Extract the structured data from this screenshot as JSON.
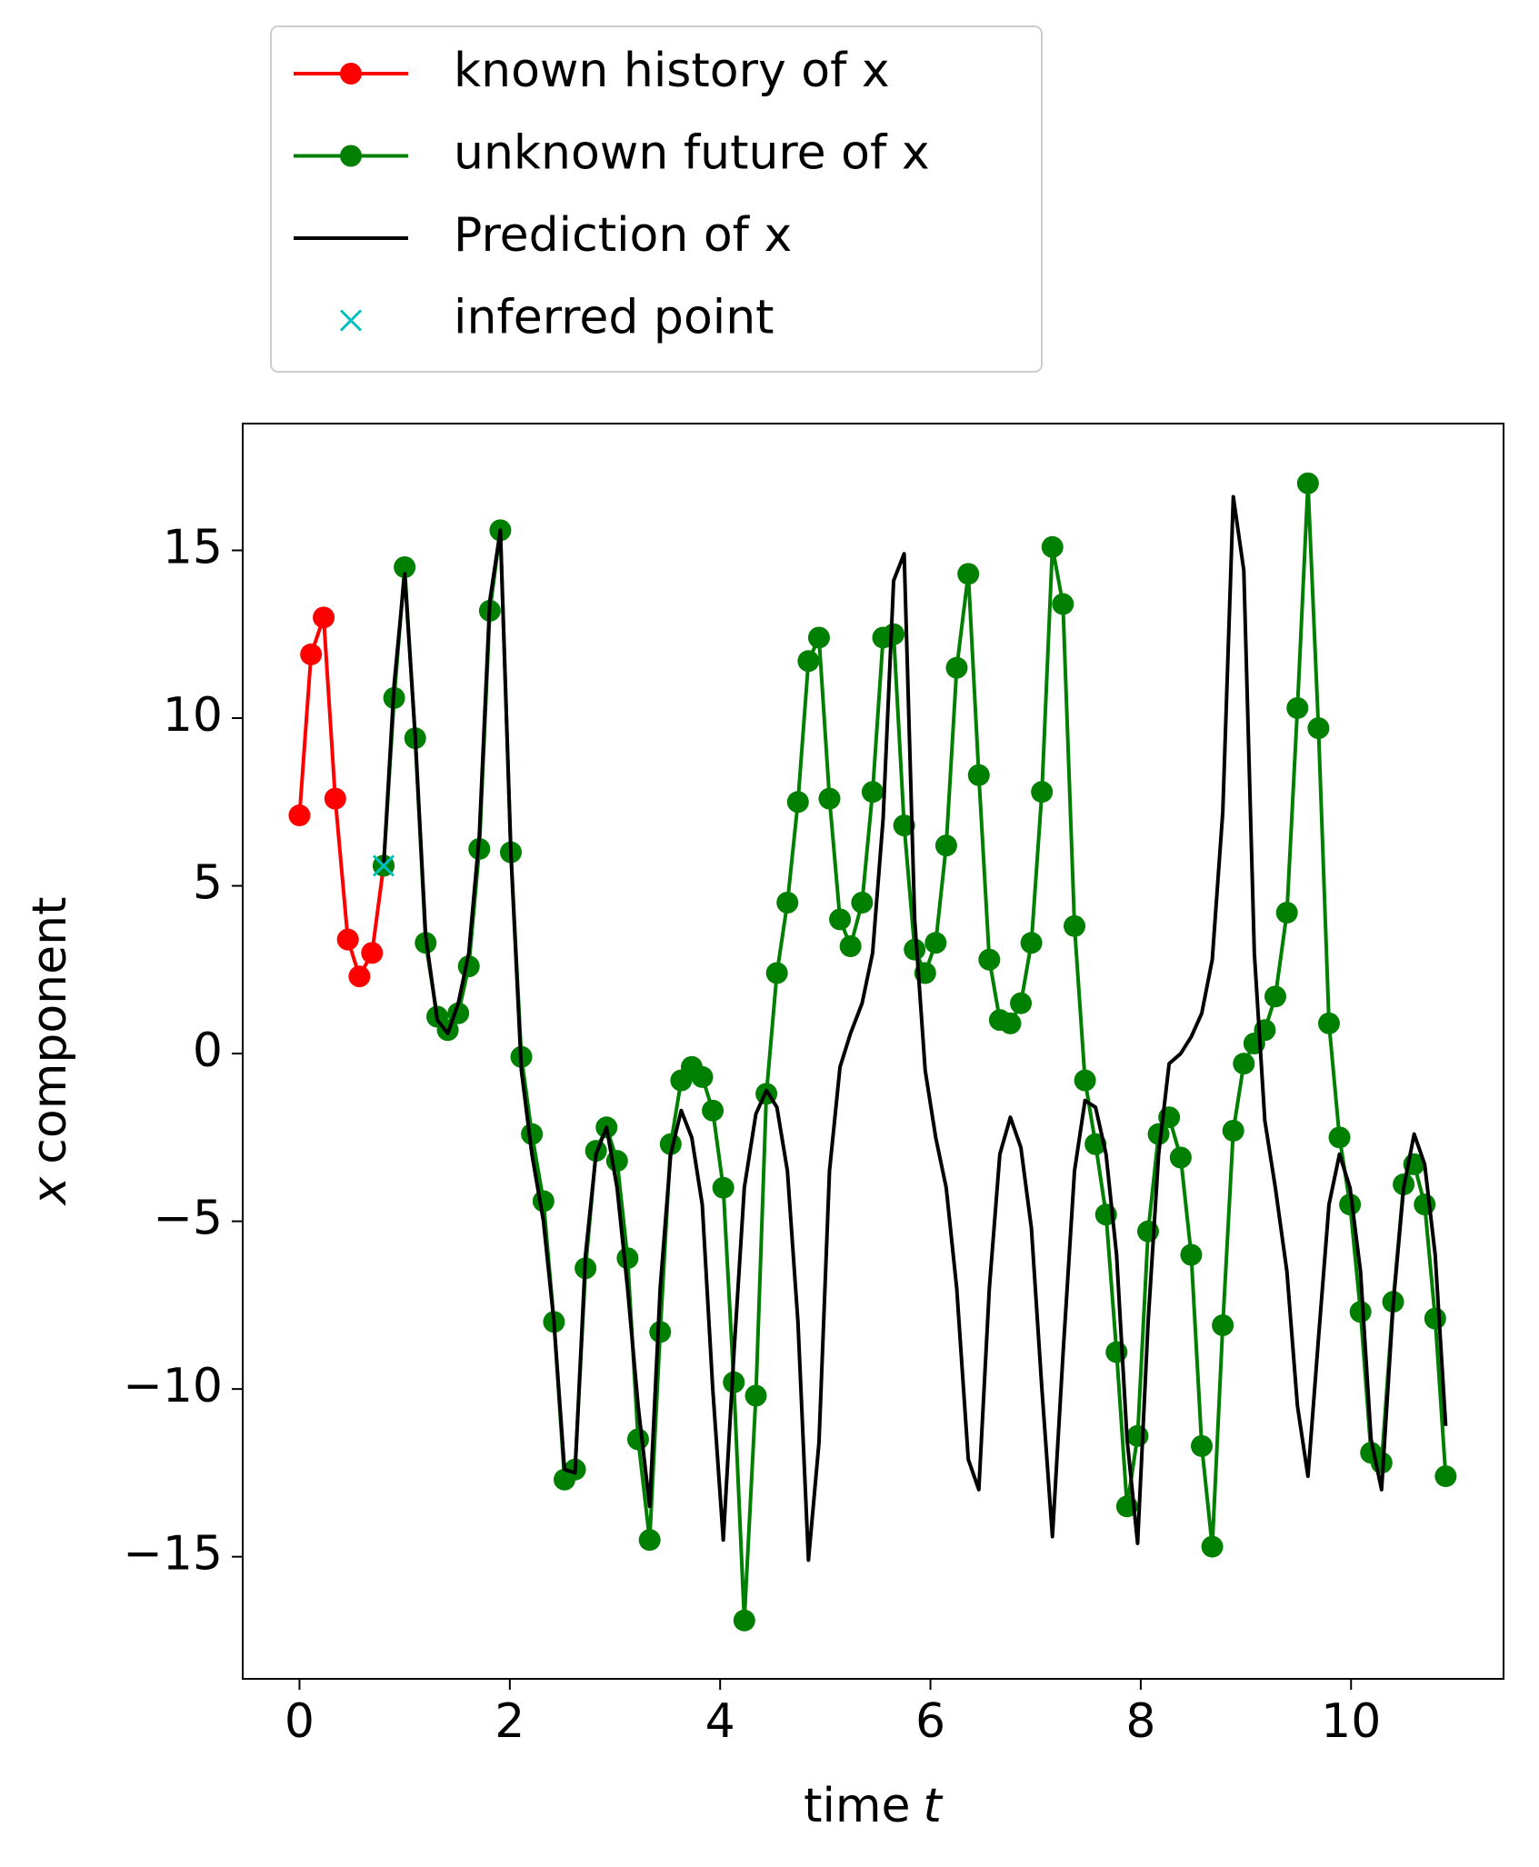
{
  "chart_data": {
    "type": "line",
    "xlabel": [
      "time",
      "t"
    ],
    "ylabel": [
      "x",
      "component"
    ],
    "xlim": [
      -0.54,
      11.45
    ],
    "ylim": [
      -18.64,
      18.78
    ],
    "xticks": [
      0,
      2,
      4,
      6,
      8,
      10
    ],
    "yticks": [
      {
        "value": -15,
        "label": "−15"
      },
      {
        "value": -10,
        "label": "−10"
      },
      {
        "value": -5,
        "label": "−5"
      },
      0,
      5,
      10,
      15
    ],
    "legend": "above-left",
    "x": [
      0.8,
      0.9,
      1.0,
      1.1,
      1.2,
      1.31,
      1.41,
      1.51,
      1.61,
      1.71,
      1.81,
      1.91,
      2.01,
      2.11,
      2.21,
      2.32,
      2.42,
      2.52,
      2.62,
      2.72,
      2.82,
      2.92,
      3.02,
      3.12,
      3.22,
      3.33,
      3.43,
      3.53,
      3.63,
      3.73,
      3.83,
      3.93,
      4.03,
      4.13,
      4.23,
      4.34,
      4.44,
      4.54,
      4.64,
      4.74,
      4.84,
      4.94,
      5.04,
      5.14,
      5.24,
      5.35,
      5.45,
      5.55,
      5.65,
      5.75,
      5.85,
      5.95,
      6.05,
      6.15,
      6.25,
      6.36,
      6.46,
      6.56,
      6.66,
      6.76,
      6.86,
      6.96,
      7.06,
      7.16,
      7.26,
      7.37,
      7.47,
      7.57,
      7.67,
      7.77,
      7.87,
      7.97,
      8.07,
      8.17,
      8.27,
      8.38,
      8.48,
      8.58,
      8.68,
      8.78,
      8.88,
      8.98,
      9.08,
      9.18,
      9.28,
      9.39,
      9.49,
      9.59,
      9.69,
      9.79,
      9.89,
      9.99,
      10.09,
      10.19,
      10.29,
      10.4,
      10.5,
      10.6,
      10.7,
      10.8,
      10.9
    ],
    "series": [
      {
        "name": "known history of x",
        "color": "#ff0000",
        "marker": "o",
        "x": [
          0,
          0.11,
          0.23,
          0.34,
          0.46,
          0.57,
          0.69,
          0.8
        ],
        "values": [
          7.1,
          11.9,
          13.0,
          7.6,
          3.4,
          2.3,
          3.0,
          5.6
        ]
      },
      {
        "name": "unknown future of x",
        "color": "#008000",
        "marker": "o",
        "values": [
          5.6,
          10.6,
          14.5,
          9.4,
          3.3,
          1.1,
          0.7,
          1.2,
          2.6,
          6.1,
          13.2,
          15.6,
          6.0,
          -0.1,
          -2.4,
          -4.4,
          -8.0,
          -12.7,
          -12.4,
          -6.4,
          -2.9,
          -2.2,
          -3.2,
          -6.1,
          -11.5,
          -14.5,
          -8.3,
          -2.7,
          -0.8,
          -0.4,
          -0.7,
          -1.7,
          -4.0,
          -9.8,
          -16.9,
          -10.2,
          -1.2,
          2.4,
          4.5,
          7.5,
          11.7,
          12.4,
          7.6,
          4.0,
          3.2,
          4.5,
          7.8,
          12.4,
          12.5,
          6.8,
          3.1,
          2.4,
          3.3,
          6.2,
          11.5,
          14.3,
          8.3,
          2.8,
          1.0,
          0.9,
          1.5,
          3.3,
          7.8,
          15.1,
          13.4,
          3.8,
          -0.8,
          -2.7,
          -4.8,
          -8.9,
          -13.5,
          -11.4,
          -5.3,
          -2.4,
          -1.9,
          -3.1,
          -6.0,
          -11.7,
          -14.7,
          -8.1,
          -2.3,
          -0.3,
          0.3,
          0.7,
          1.7,
          4.2,
          10.3,
          17.0,
          9.7,
          0.9,
          -2.5,
          -4.5,
          -7.7,
          -11.9,
          -12.2,
          -7.4,
          -3.9,
          -3.3,
          -4.5,
          -7.9,
          -12.6
        ]
      },
      {
        "name": "Prediction of x",
        "color": "#000000",
        "values": [
          5.6,
          11,
          14.3,
          9.5,
          3.5,
          1.0,
          0.6,
          1.5,
          3,
          6.5,
          13.5,
          15.6,
          6,
          -0.5,
          -3,
          -5,
          -8,
          -12.4,
          -12.5,
          -6,
          -3,
          -2.2,
          -4,
          -7,
          -10.5,
          -13.5,
          -7,
          -3,
          -1.7,
          -2.5,
          -4.5,
          -10,
          -14.5,
          -9,
          -4,
          -1.8,
          -1.1,
          -1.6,
          -3.5,
          -8,
          -15.1,
          -11.6,
          -3.5,
          -0.4,
          0.6,
          1.5,
          3,
          7,
          14.1,
          14.9,
          4,
          -0.5,
          -2.5,
          -4,
          -7,
          -12.1,
          -13,
          -7,
          -3,
          -1.9,
          -2.8,
          -5.2,
          -10,
          -14.4,
          -9,
          -3.5,
          -1.4,
          -1.6,
          -3,
          -6,
          -11.5,
          -14.6,
          -8,
          -3,
          -0.3,
          0,
          0.5,
          1.2,
          2.8,
          7.2,
          16.6,
          14.4,
          3,
          -2,
          -4,
          -6.5,
          -10.5,
          -12.6,
          -8.5,
          -4.5,
          -3,
          -4,
          -6.5,
          -11.5,
          -13,
          -7.5,
          -4,
          -2.4,
          -3.3,
          -6,
          -11.1
        ]
      },
      {
        "name": "inferred point",
        "color": "#00bfbf",
        "marker": "x",
        "linestyle": "none",
        "x": [
          0.8
        ],
        "values": [
          5.6
        ]
      }
    ]
  }
}
